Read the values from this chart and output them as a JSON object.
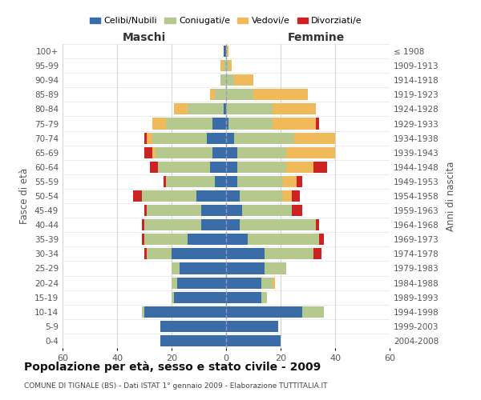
{
  "age_groups": [
    "0-4",
    "5-9",
    "10-14",
    "15-19",
    "20-24",
    "25-29",
    "30-34",
    "35-39",
    "40-44",
    "45-49",
    "50-54",
    "55-59",
    "60-64",
    "65-69",
    "70-74",
    "75-79",
    "80-84",
    "85-89",
    "90-94",
    "95-99",
    "100+"
  ],
  "birth_years": [
    "2004-2008",
    "1999-2003",
    "1994-1998",
    "1989-1993",
    "1984-1988",
    "1979-1983",
    "1974-1978",
    "1969-1973",
    "1964-1968",
    "1959-1963",
    "1954-1958",
    "1949-1953",
    "1944-1948",
    "1939-1943",
    "1934-1938",
    "1929-1933",
    "1924-1928",
    "1919-1923",
    "1914-1918",
    "1909-1913",
    "≤ 1908"
  ],
  "males": {
    "celibi": [
      24,
      24,
      30,
      19,
      18,
      17,
      20,
      14,
      9,
      9,
      11,
      4,
      6,
      5,
      7,
      5,
      1,
      0,
      0,
      0,
      1
    ],
    "coniugati": [
      0,
      0,
      1,
      1,
      2,
      3,
      9,
      16,
      21,
      20,
      20,
      18,
      19,
      21,
      20,
      17,
      13,
      4,
      2,
      1,
      0
    ],
    "vedovi": [
      0,
      0,
      0,
      0,
      0,
      0,
      0,
      0,
      0,
      0,
      0,
      0,
      0,
      1,
      2,
      5,
      5,
      2,
      0,
      1,
      0
    ],
    "divorziati": [
      0,
      0,
      0,
      0,
      0,
      0,
      1,
      1,
      1,
      1,
      3,
      1,
      3,
      3,
      1,
      0,
      0,
      0,
      0,
      0,
      0
    ]
  },
  "females": {
    "nubili": [
      20,
      19,
      28,
      13,
      13,
      14,
      14,
      8,
      5,
      6,
      5,
      4,
      4,
      4,
      3,
      1,
      0,
      0,
      0,
      0,
      0
    ],
    "coniugate": [
      0,
      0,
      8,
      2,
      4,
      8,
      18,
      26,
      28,
      18,
      16,
      17,
      18,
      18,
      22,
      16,
      17,
      10,
      3,
      1,
      0
    ],
    "vedove": [
      0,
      0,
      0,
      0,
      1,
      0,
      0,
      0,
      0,
      0,
      3,
      5,
      10,
      18,
      15,
      16,
      16,
      20,
      7,
      1,
      1
    ],
    "divorziate": [
      0,
      0,
      0,
      0,
      0,
      0,
      3,
      2,
      1,
      4,
      3,
      2,
      5,
      0,
      0,
      1,
      0,
      0,
      0,
      0,
      0
    ]
  },
  "colors": {
    "celibi": "#3a6ca8",
    "coniugati": "#b5c98e",
    "vedovi": "#f0b95a",
    "divorziati": "#cc2222"
  },
  "xlim": 60,
  "title": "Popolazione per età, sesso e stato civile - 2009",
  "subtitle": "COMUNE DI TIGNALE (BS) - Dati ISTAT 1° gennaio 2009 - Elaborazione TUTTITALIA.IT",
  "ylabel_left": "Fasce di età",
  "ylabel_right": "Anni di nascita",
  "xlabel_left": "Maschi",
  "xlabel_right": "Femmine",
  "background_color": "#ffffff",
  "grid_color": "#cccccc"
}
